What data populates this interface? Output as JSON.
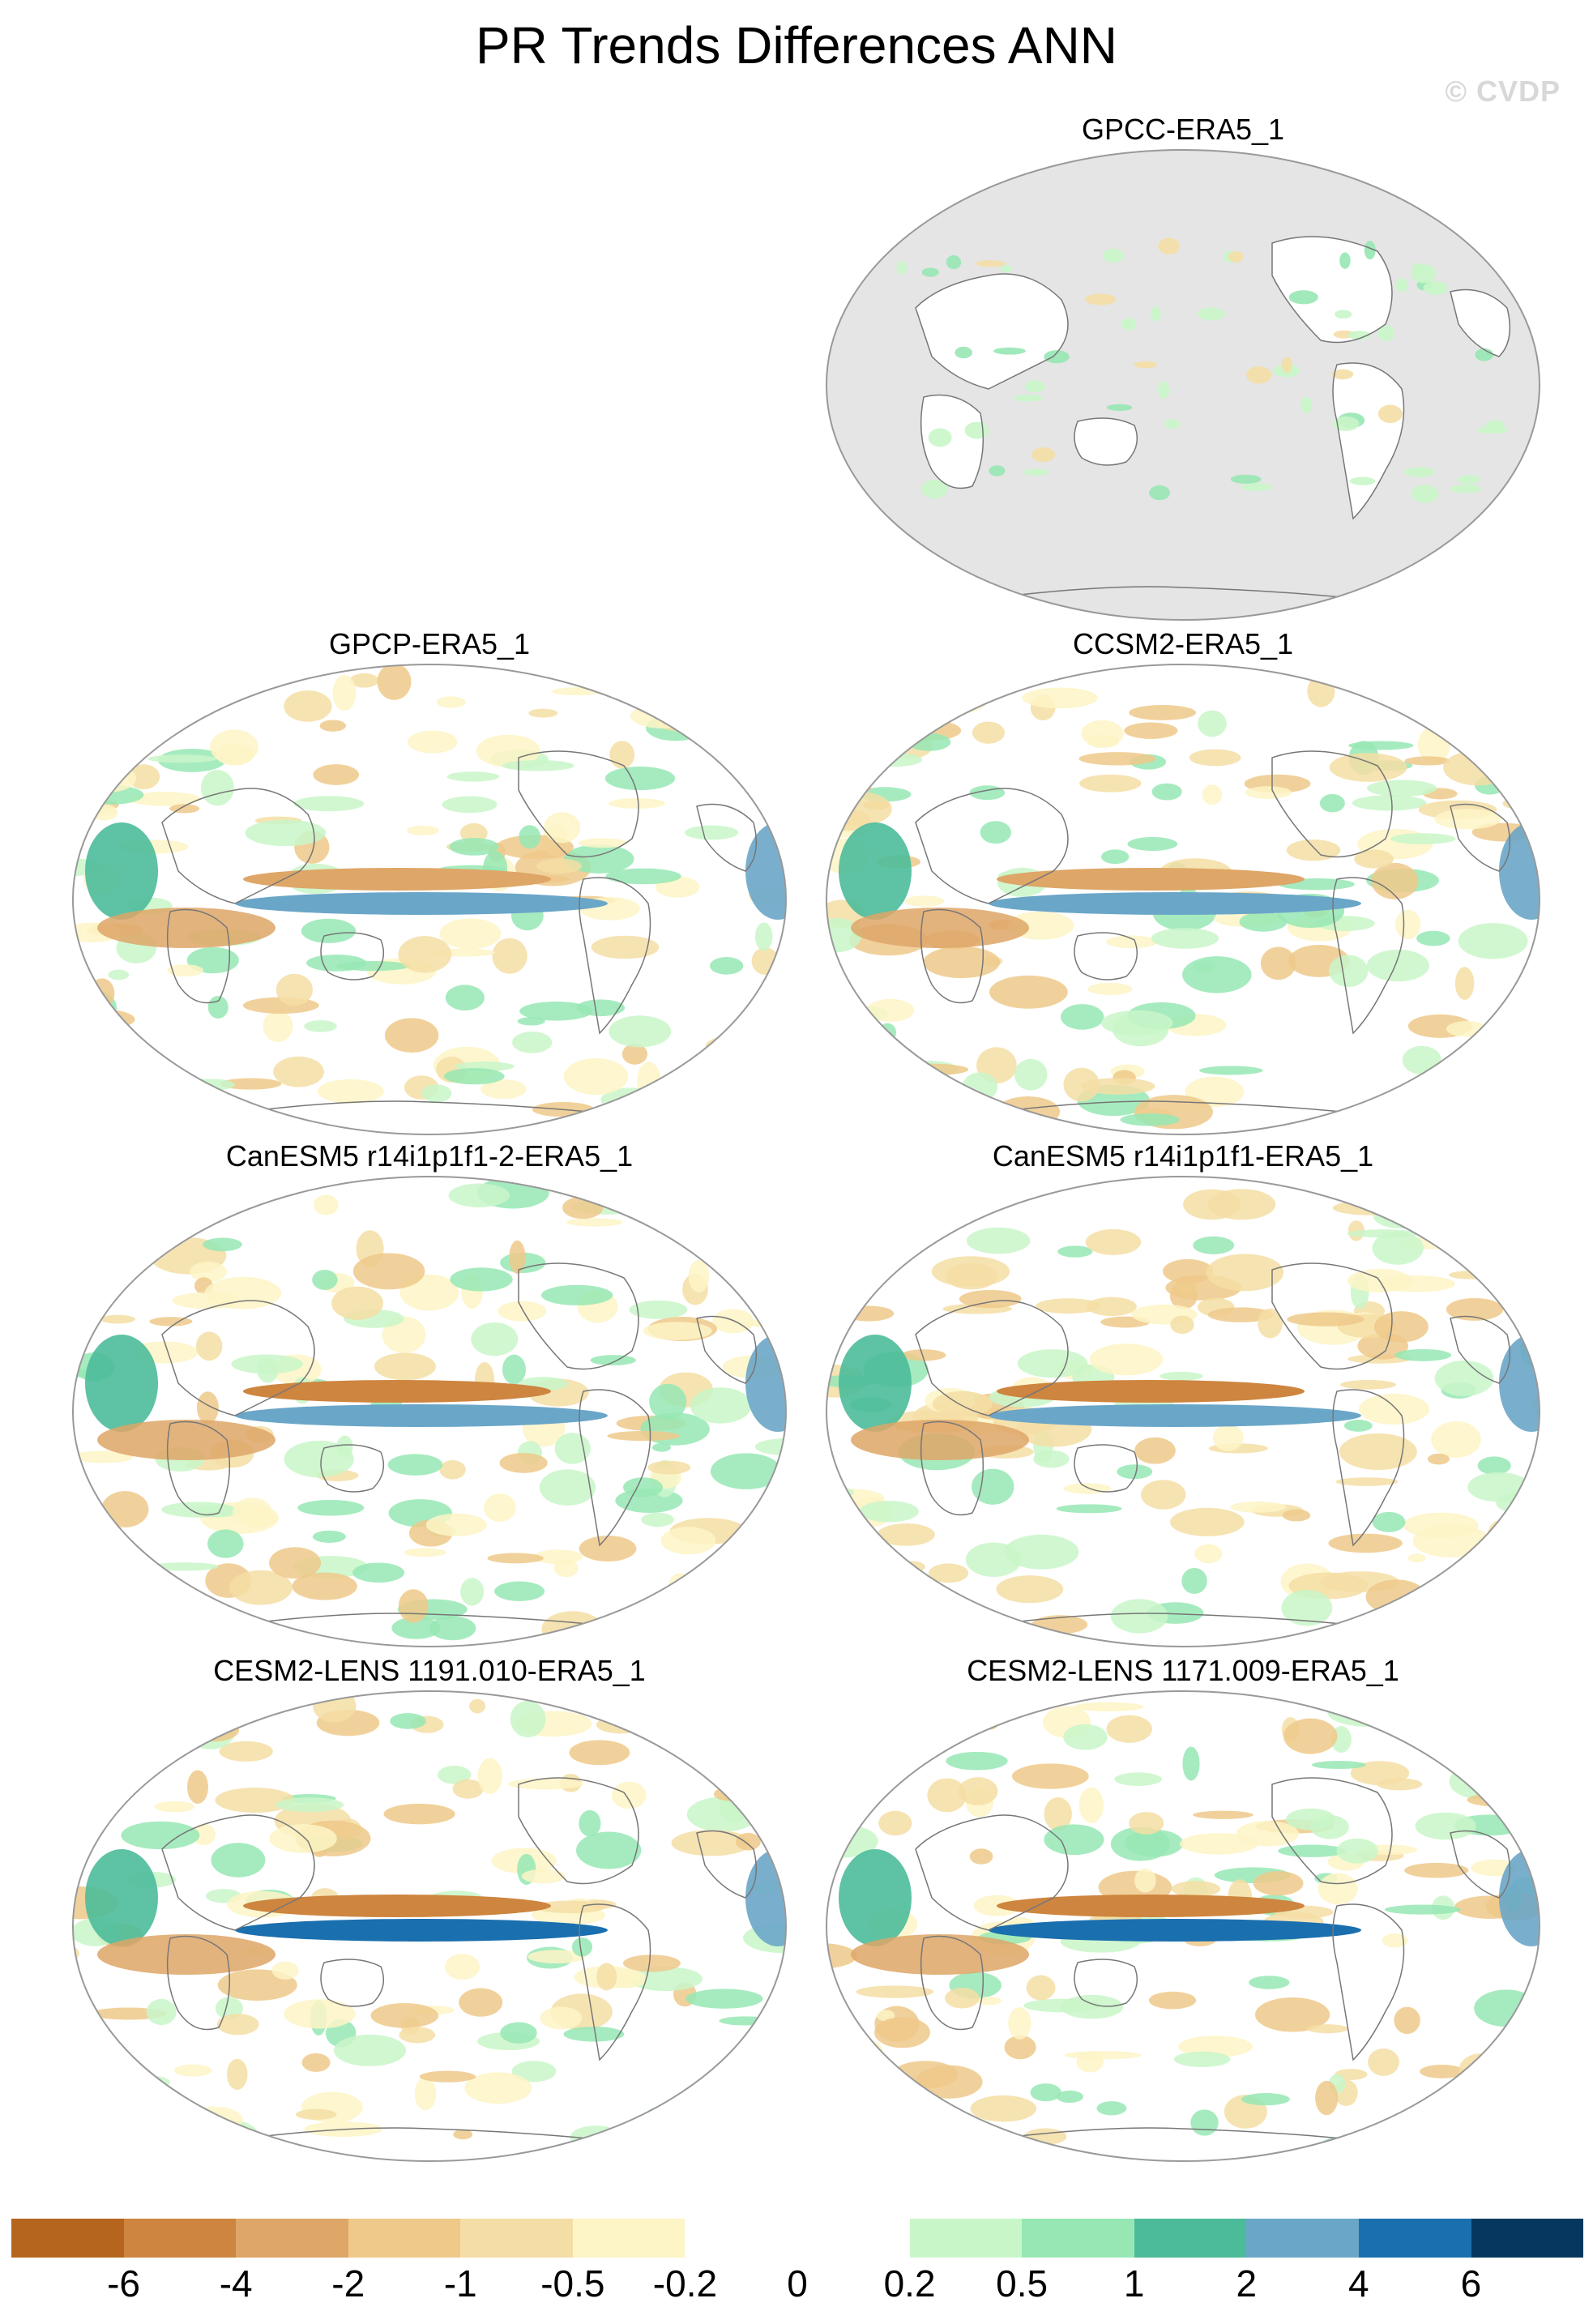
{
  "title": "PR Trends Differences ANN",
  "watermark": "© CVDP",
  "panels": [
    {
      "label": "GPCC-ERA5_1",
      "pattern": "obs-land"
    },
    {
      "label": "GPCP-ERA5_1",
      "pattern": "gpcp"
    },
    {
      "label": "CCSM2-ERA5_1",
      "pattern": "ccsm"
    },
    {
      "label": "CanESM5 r14i1p1f1-2-ERA5_1",
      "pattern": "canesm"
    },
    {
      "label": "CanESM5 r14i1p1f1-ERA5_1",
      "pattern": "canesm"
    },
    {
      "label": "CESM2-LENS 1191.010-ERA5_1",
      "pattern": "cesm"
    },
    {
      "label": "CESM2-LENS 1171.009-ERA5_1",
      "pattern": "cesm"
    }
  ],
  "colorbar": {
    "colors": [
      "#b5651d",
      "#cd853f",
      "#dea667",
      "#eec98a",
      "#f4dea5",
      "#fdf5c6",
      "#ffffff",
      "#ffffff",
      "#c9f6c9",
      "#97e7b4",
      "#4cbb9a",
      "#6aa6c8",
      "#1a6faf",
      "#06385f"
    ],
    "labels": [
      "-6",
      "-4",
      "-2",
      "-1",
      "-0.5",
      "-0.2",
      "0",
      "0.2",
      "0.5",
      "1",
      "2",
      "4",
      "6"
    ]
  },
  "missing_color": "#e5e5e5"
}
